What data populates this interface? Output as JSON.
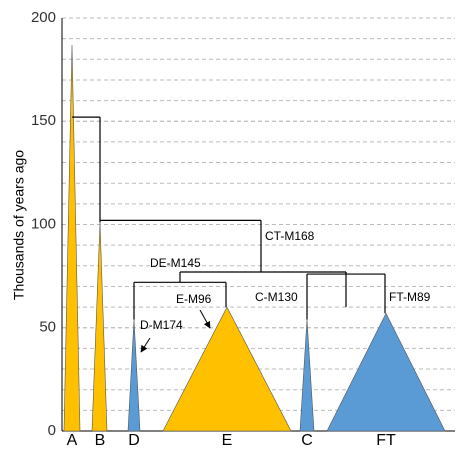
{
  "chart_data": {
    "type": "tree",
    "y_label": "Thousands of years ago",
    "categories": [
      "A",
      "B",
      "D",
      "E",
      "C",
      "FT"
    ],
    "values": [
      187,
      101,
      54,
      60,
      54,
      57
    ],
    "colors": [
      "#FFC000",
      "#FFC000",
      "#5B9BD5",
      "#FFC000",
      "#5B9BD5",
      "#5B9BD5"
    ],
    "markers": [
      null,
      null,
      "D-M174",
      "E-M96",
      "C-M130",
      "FT-M89"
    ],
    "joins": [
      152,
      102,
      77,
      72,
      76
    ],
    "join_labels": [
      null,
      null,
      "CT-M168",
      "DE-M145",
      null
    ],
    "ylim": [
      0,
      200
    ],
    "yticks": [
      0,
      50,
      100,
      150,
      200
    ],
    "minor_grid_step": 10,
    "grid": true
  }
}
